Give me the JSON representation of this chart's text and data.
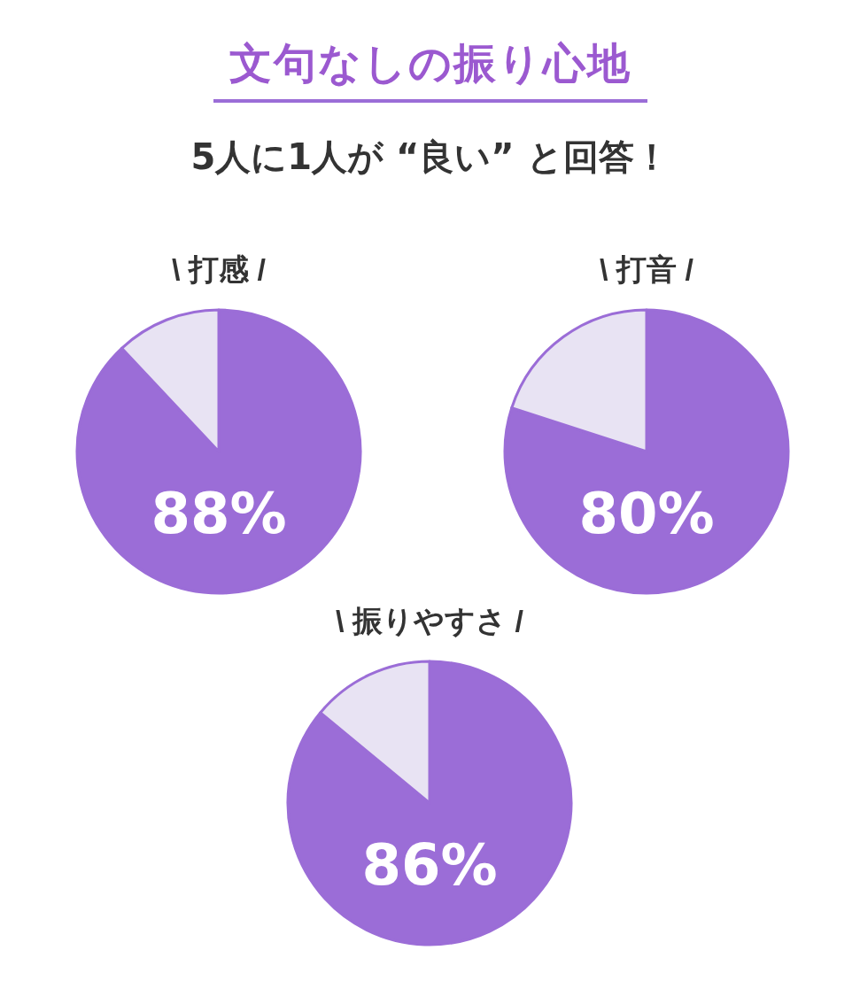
{
  "chart_data": [
    {
      "type": "other",
      "title": "文句なしの振り心地",
      "subtitle": "5人に1人が “良い” と回答！"
    },
    {
      "type": "pie",
      "title": "\\ 打感 /",
      "categories": [
        null,
        null
      ],
      "values": [
        88,
        12
      ],
      "colors": [
        "#9b6dd7",
        "#e8e3f3"
      ],
      "value_labels": [
        "88%",
        null
      ]
    },
    {
      "type": "pie",
      "title": "\\ 打音 /",
      "categories": [
        null,
        null
      ],
      "values": [
        80,
        20
      ],
      "colors": [
        "#9b6dd7",
        "#e8e3f3"
      ],
      "value_labels": [
        "80%",
        null
      ]
    },
    {
      "type": "pie",
      "title": "\\ 振りやすさ /",
      "categories": [
        null,
        null
      ],
      "values": [
        86,
        14
      ],
      "colors": [
        "#9b6dd7",
        "#e8e3f3"
      ],
      "value_labels": [
        "86%",
        null
      ]
    }
  ]
}
